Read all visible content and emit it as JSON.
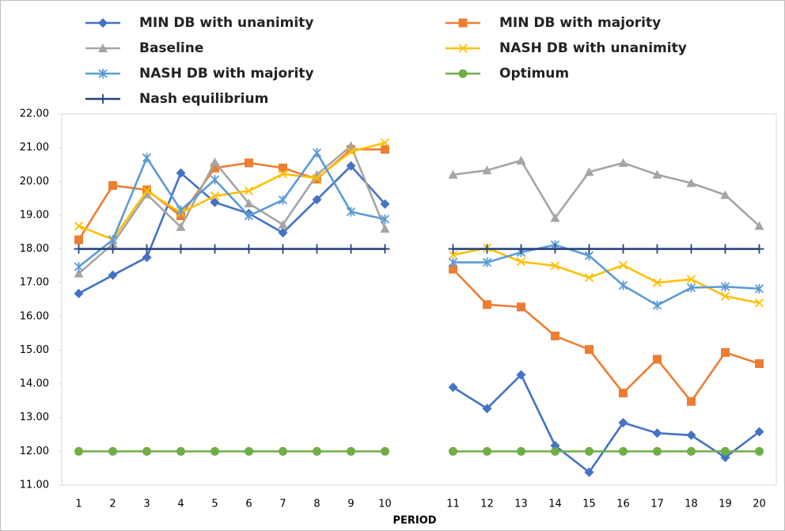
{
  "chart_data": {
    "type": "line",
    "x_label": "PERIOD",
    "legend": "top",
    "categories": [
      "1",
      "2",
      "3",
      "4",
      "5",
      "6",
      "7",
      "8",
      "9",
      "10",
      null,
      "11",
      "12",
      "13",
      "14",
      "15",
      "16",
      "17",
      "18",
      "19",
      "20"
    ],
    "ylim": [
      11,
      22
    ],
    "yticks": [
      {
        "value": 11,
        "label": "11.00"
      },
      {
        "value": 12,
        "label": "12.00"
      },
      {
        "value": 13,
        "label": "13.00"
      },
      {
        "value": 14,
        "label": "14.00"
      },
      {
        "value": 15,
        "label": "15.00"
      },
      {
        "value": 16,
        "label": "16.00"
      },
      {
        "value": 17,
        "label": "17.00"
      },
      {
        "value": 18,
        "label": "18.00"
      },
      {
        "value": 19,
        "label": "19.00"
      },
      {
        "value": 20,
        "label": "20.00"
      },
      {
        "value": 21,
        "label": "21.00"
      },
      {
        "value": 22,
        "label": "22.00"
      }
    ],
    "series": [
      {
        "name": "MIN DB with unanimity",
        "color": "#4472c4",
        "marker": "diamond",
        "values": [
          16.68,
          17.22,
          17.75,
          20.25,
          19.38,
          19.05,
          18.48,
          19.46,
          20.46,
          19.33,
          null,
          13.9,
          13.27,
          14.27,
          12.17,
          11.38,
          12.85,
          12.54,
          12.48,
          11.82,
          12.58
        ]
      },
      {
        "name": "MIN DB with majority",
        "color": "#ed7d31",
        "marker": "square",
        "values": [
          18.27,
          19.88,
          19.75,
          18.98,
          20.4,
          20.55,
          20.4,
          20.07,
          20.95,
          20.95,
          null,
          17.4,
          16.35,
          16.28,
          15.42,
          15.02,
          13.73,
          14.73,
          13.48,
          14.93,
          14.6
        ]
      },
      {
        "name": "Baseline",
        "color": "#a5a5a5",
        "marker": "triangle",
        "values": [
          17.27,
          18.15,
          19.62,
          18.65,
          20.57,
          19.35,
          18.72,
          20.2,
          21.05,
          18.6,
          null,
          20.2,
          20.33,
          20.62,
          18.92,
          20.28,
          20.55,
          20.2,
          19.95,
          19.6,
          18.68
        ]
      },
      {
        "name": "NASH DB with unanimity",
        "color": "#ffc000",
        "marker": "x",
        "values": [
          18.68,
          18.28,
          19.72,
          19.07,
          19.57,
          19.72,
          20.22,
          20.1,
          20.88,
          21.15,
          null,
          17.82,
          18.03,
          17.62,
          17.5,
          17.15,
          17.52,
          17.0,
          17.1,
          16.6,
          16.4
        ]
      },
      {
        "name": "NASH DB with majority",
        "color": "#5b9bd5",
        "marker": "star",
        "values": [
          17.47,
          18.27,
          20.7,
          19.15,
          20.05,
          18.98,
          19.45,
          20.85,
          19.1,
          18.88,
          null,
          17.6,
          17.6,
          17.9,
          18.12,
          17.8,
          16.92,
          16.33,
          16.85,
          16.88,
          16.82
        ]
      },
      {
        "name": "Optimum",
        "color": "#70ad47",
        "marker": "circle",
        "values": [
          12,
          12,
          12,
          12,
          12,
          12,
          12,
          12,
          12,
          12,
          null,
          12,
          12,
          12,
          12,
          12,
          12,
          12,
          12,
          12,
          12
        ]
      },
      {
        "name": "Nash equilibrium",
        "color": "#264478",
        "marker": "plus",
        "values": [
          18,
          18,
          18,
          18,
          18,
          18,
          18,
          18,
          18,
          18,
          null,
          18,
          18,
          18,
          18,
          18,
          18,
          18,
          18,
          18,
          18
        ]
      }
    ]
  }
}
